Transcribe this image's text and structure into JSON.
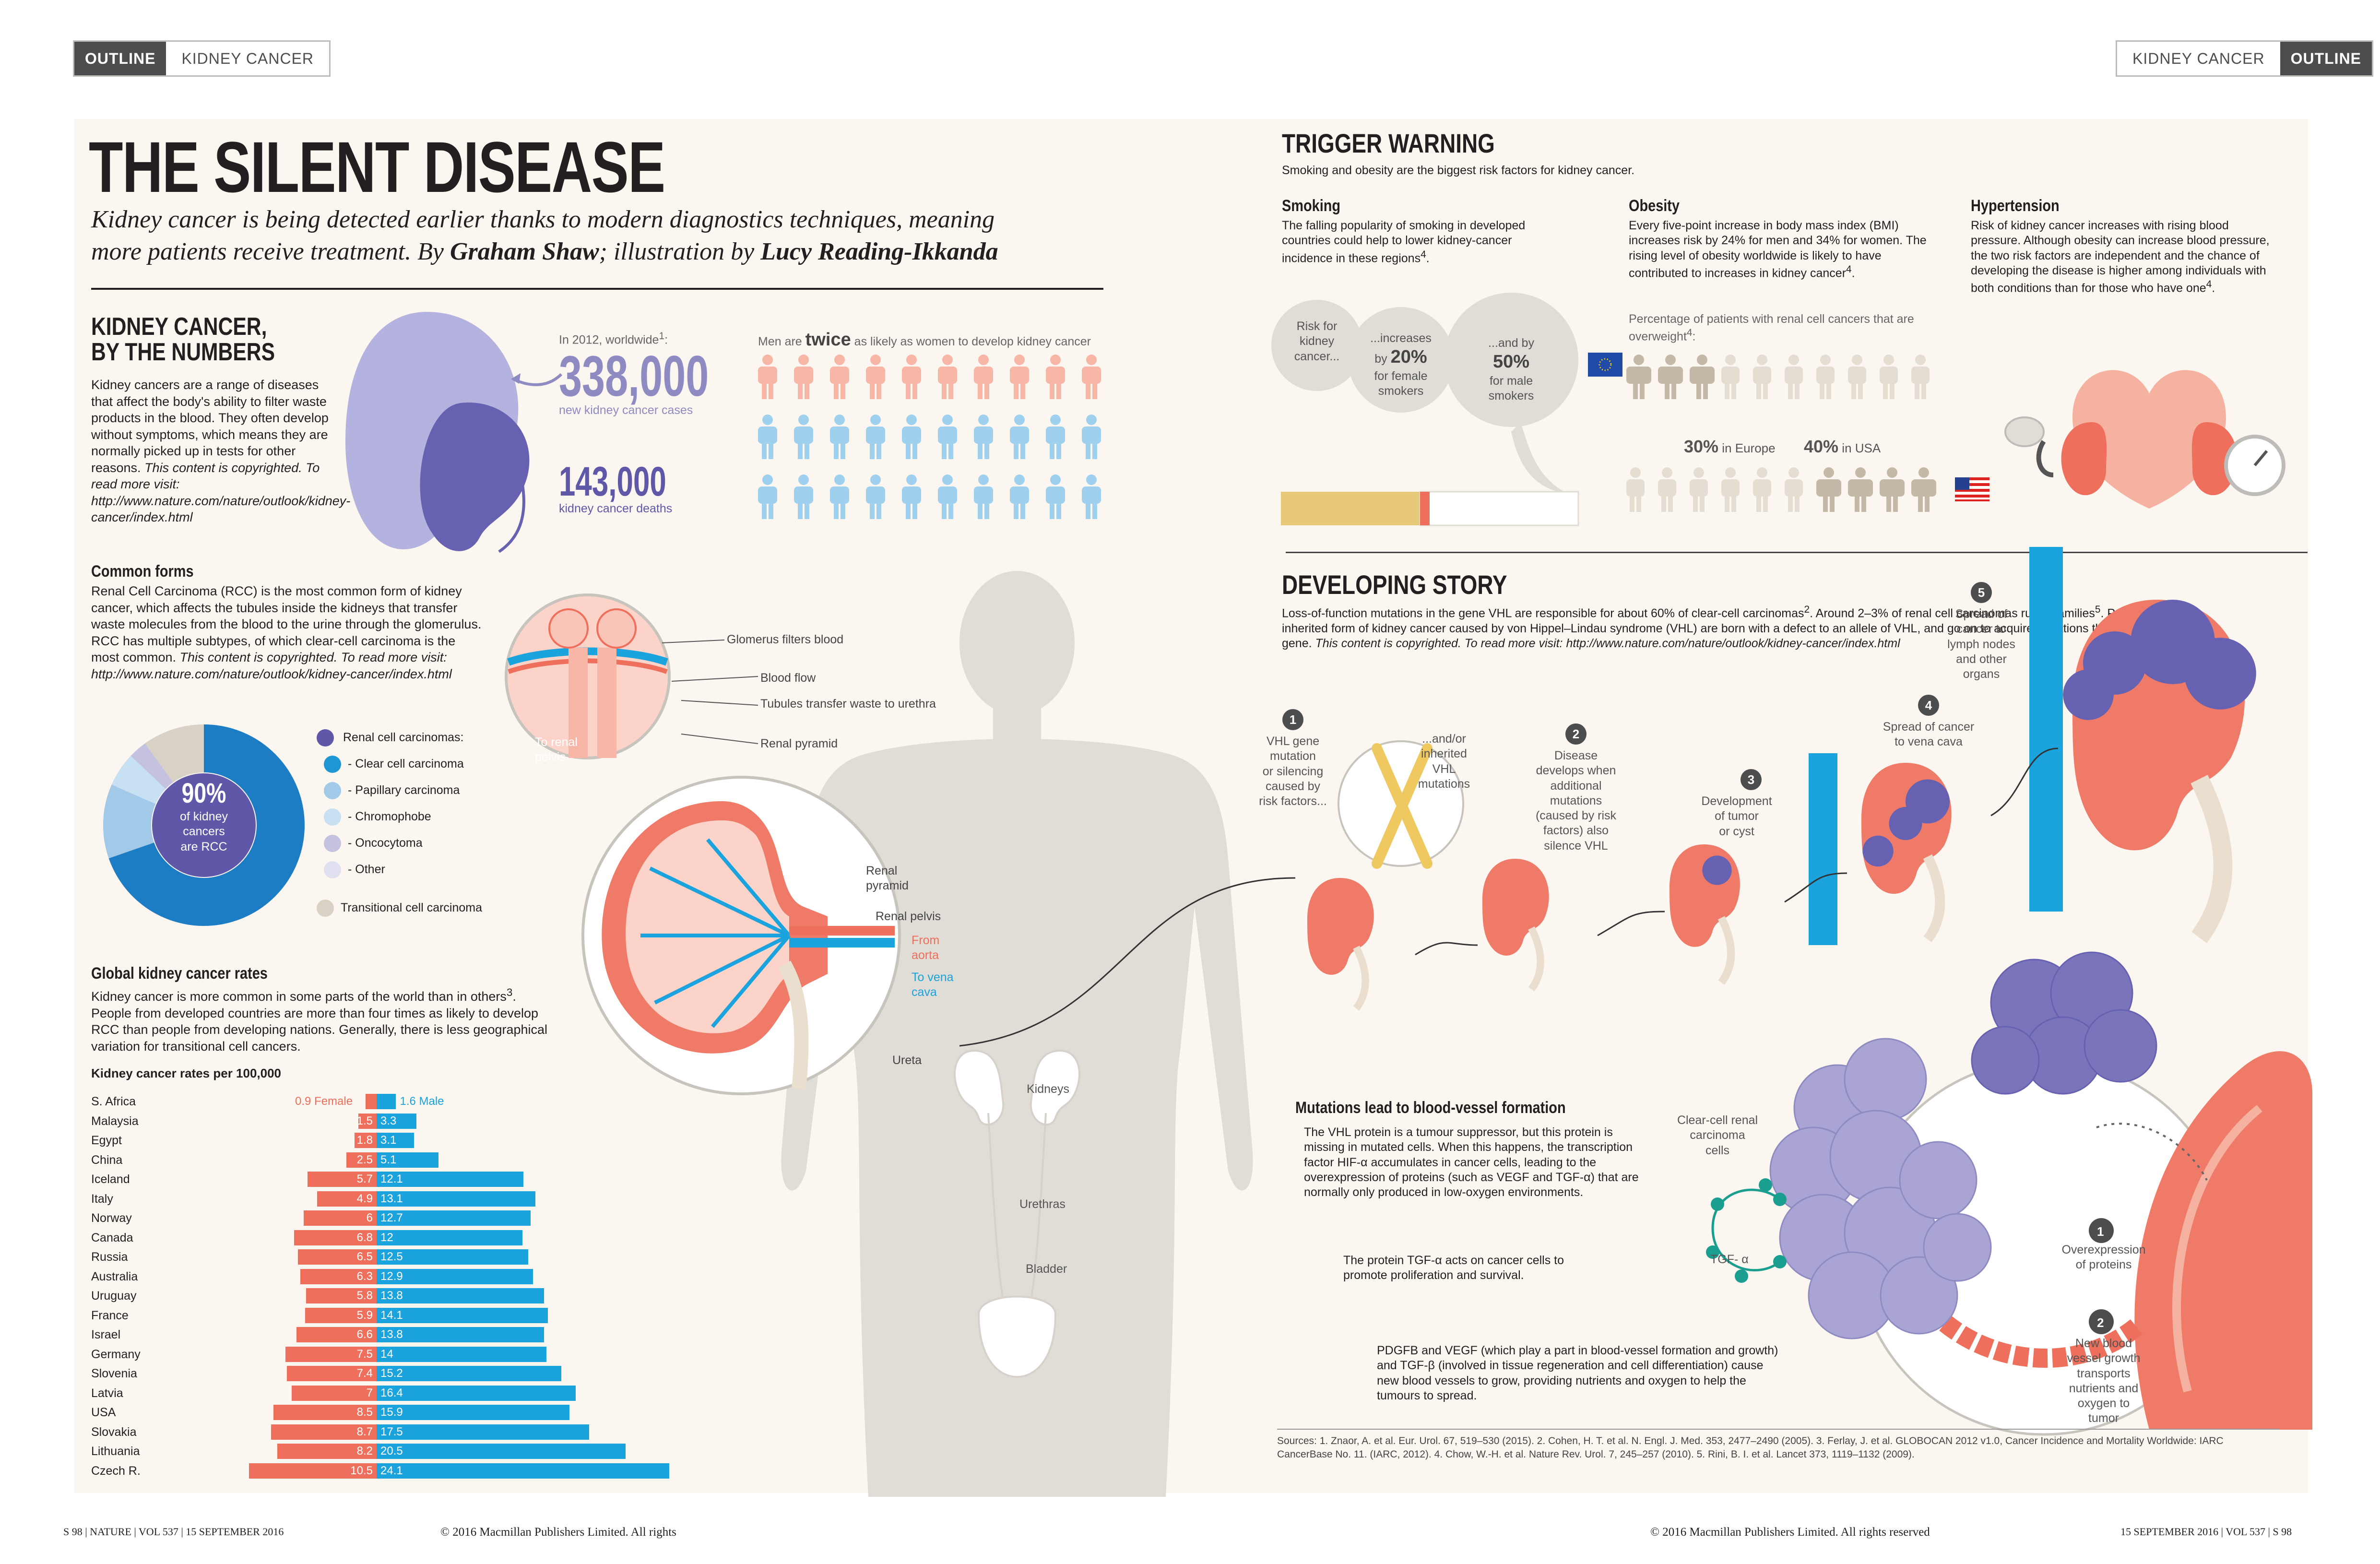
{
  "tags": {
    "left_dark": "OUTLINE",
    "left_light": "KIDNEY CANCER",
    "right_light": "KIDNEY CANCER",
    "right_dark": "OUTLINE"
  },
  "title": "THE SILENT DISEASE",
  "lead": {
    "p1": "Kidney cancer is being detected earlier thanks to modern diagnostics techniques, meaning",
    "p2": "more patients receive treatment. By ",
    "author": "Graham Shaw",
    "p3": "; illustration by ",
    "illustrator": "Lucy Reading-Ikkanda"
  },
  "numbers": {
    "heading1": "KIDNEY CANCER,",
    "heading2": "BY THE NUMBERS",
    "text": "Kidney cancers are a range of diseases that affect the body's ability to filter waste products in the blood. They often develop without symptoms, which means they are normally picked up in tests for other reasons. ",
    "text_ital": "This content is copyrighted. To read more visit: http://www.nature.com/nature/outlook/kidney-cancer/index.html",
    "worldwide": "In 2012, worldwide",
    "worldwide_sup": "1",
    "new_cases_value": "338,000",
    "new_cases_label": "new kidney cancer cases",
    "deaths_value": "143,000",
    "deaths_label": "kidney cancer deaths",
    "men_pre": "Men are ",
    "men_twice": "twice",
    "men_post": " as likely as women to develop kidney cancer"
  },
  "common_forms": {
    "heading": "Common forms",
    "text": "Renal Cell Carcinoma (RCC) is the most common form of kidney cancer, which affects the tubules inside the kidneys that transfer waste molecules from the blood to the urine through the glomerulus. RCC has multiple subtypes, of which clear-cell carcinoma is the most common. ",
    "text_ital": "This content is copyrighted. To read more visit: http://www.nature.com/nature/outlook/kidney-cancer/index.html",
    "donut_value": "90%",
    "donut_label1": "of kidney",
    "donut_label2": "cancers",
    "donut_label3": "are RCC",
    "legend": [
      "Renal cell carcinomas:",
      "- Clear cell carcinoma",
      "- Papillary carcinoma",
      "- Chromophobe",
      "- Oncocytoma",
      "- Other"
    ],
    "transitional": "Transitional cell carcinoma",
    "legend_colors": [
      "#5f58a8",
      "#1d96d3",
      "#a3c9e8",
      "#c7e0f2",
      "#c5c2e0",
      "#e1e0f0"
    ]
  },
  "global_rates": {
    "heading": "Global kidney cancer rates",
    "text": "Kidney cancer is more common in some parts of the world than in others",
    "text_sup": "3",
    "text2": ". People from developed countries are more than four times as likely to develop RCC than people from developing nations. Generally, there is less geographical variation for transitional cell cancers.",
    "chart_title": "Kidney cancer rates per 100,000"
  },
  "chart_data": {
    "type": "bar",
    "title": "Kidney cancer rates per 100,000",
    "categories": [
      "S. Africa",
      "Malaysia",
      "Egypt",
      "China",
      "Iceland",
      "Italy",
      "Norway",
      "Canada",
      "Russia",
      "Australia",
      "Uruguay",
      "France",
      "Israel",
      "Germany",
      "Slovenia",
      "Latvia",
      "USA",
      "Slovakia",
      "Lithuania",
      "Czech R."
    ],
    "series": [
      {
        "name": "Female",
        "color": "#ee6f5b",
        "values": [
          0.9,
          1.5,
          1.8,
          2.5,
          5.7,
          4.9,
          6,
          6.8,
          6.5,
          6.3,
          5.8,
          5.9,
          6.6,
          7.5,
          7.4,
          7,
          8.5,
          8.7,
          8.2,
          10.5
        ]
      },
      {
        "name": "Male",
        "color": "#1aa3dc",
        "values": [
          1.6,
          3.3,
          3.1,
          5.1,
          12.1,
          13.1,
          12.7,
          12,
          12.5,
          12.9,
          13.8,
          14.1,
          13.8,
          14,
          15.2,
          16.4,
          15.9,
          17.5,
          20.5,
          24.1
        ]
      }
    ],
    "labels": [
      "0.9 Female",
      "1.6 Male"
    ]
  },
  "anatomy": {
    "glomerus": "Glomerus filters blood",
    "blood_flow": "Blood flow",
    "tubules": "Tubules transfer waste to urethra",
    "renal_pyramid": "Renal pyramid",
    "to_renal": "To renal",
    "pelvis": "pelvis",
    "renal_pyramid2a": "Renal",
    "renal_pyramid2b": "pyramid",
    "renal_pelvis": "Renal pelvis",
    "from_aorta1": "From",
    "from_aorta2": "aorta",
    "to_vena1": "To vena",
    "to_vena2": "cava",
    "ureta": "Ureta",
    "kidneys": "Kidneys",
    "urethras": "Urethras",
    "bladder": "Bladder"
  },
  "trigger": {
    "heading": "TRIGGER WARNING",
    "sub": "Smoking and obesity are the biggest risk factors for kidney cancer.",
    "smoking_h": "Smoking",
    "smoking_t": "The falling popularity of smoking in developed countries could help to lower kidney-cancer incidence in these regions",
    "smoking_sup": "4",
    "obesity_h": "Obesity",
    "obesity_t": "Every five-point increase in body mass index (BMI) increases risk by 24% for men and 34% for women. The rising level of obesity worldwide is likely to have contributed to increases in kidney cancer",
    "obesity_sup": "4",
    "hyper_h": "Hypertension",
    "hyper_t": "Risk of kidney cancer increases with rising blood pressure. Although obesity can increase blood pressure, the two risk factors are independent and the chance of developing the disease is higher among individuals with both conditions than for those who have one",
    "hyper_sup": "4",
    "b1": [
      "Risk for",
      "kidney",
      "cancer..."
    ],
    "b2a": "...increases",
    "b2b": "by ",
    "b2v": "20%",
    "b2c": "for female",
    "b2d": "smokers",
    "b3a": "...and by",
    "b3v": "50%",
    "b3b": "for male",
    "b3c": "smokers",
    "pct_text": "Percentage of patients with renal cell cancers that are overweight",
    "pct_sup": "4",
    "europe_v": "30%",
    "europe_l": " in Europe",
    "usa_v": "40%",
    "usa_l": " in USA"
  },
  "developing": {
    "heading": "DEVELOPING STORY",
    "text": "Loss-of-function mutations in the gene VHL are responsible for about 60% of clear-cell carcinomas",
    "sup1": "2",
    "text2": ". Around 2–3% of renal cell carcinomas run in families",
    "sup2": "5",
    "text3": ". People with an inherited form of kidney cancer caused by von Hippel–Lindau syndrome (VHL) are born with a defect to an allele of VHL, and go on to acquire mutations that silence the gene. ",
    "text_ital": "This content is copyrighted. To read more visit: http://www.nature.com/nature/outlook/kidney-cancer/index.html",
    "s1": [
      "VHL gene",
      "mutation",
      "or silencing",
      "caused by",
      "risk factors..."
    ],
    "s1b": [
      "...and/or",
      "inherited",
      "VHL",
      "mutations"
    ],
    "s2": [
      "Disease",
      "develops when",
      "additional",
      "mutations",
      "(caused by risk",
      "factors) also",
      "silence VHL"
    ],
    "s3": [
      "Development",
      "of tumor",
      "or cyst"
    ],
    "s4": [
      "Spread of cancer",
      "to vena cava"
    ],
    "s5": [
      "Spread of",
      "cancer to",
      "lymph nodes",
      "and other",
      "organs"
    ],
    "nums": [
      "1",
      "2",
      "3",
      "4",
      "5"
    ]
  },
  "mutations": {
    "heading": "Mutations lead to blood-vessel formation",
    "text": "The VHL protein is a tumour suppressor, but this protein is missing in mutated cells. When this happens, the transcription factor HIF-α accumulates in cancer cells, leading to the overexpression of proteins (such as VEGF and TGF-α) that are normally only produced in low-oxygen environments.",
    "tgf_text": "The protein TGF-α acts on cancer cells to promote proliferation and survival.",
    "tgf_label": "TGF- α",
    "clear_cell": [
      "Clear-cell renal",
      "carcinoma",
      "cells"
    ],
    "over": [
      "Overexpression",
      "of proteins"
    ],
    "newv": [
      "New blood",
      "vessel growth",
      "transports",
      "nutrients and",
      "oxygen to",
      "tumor"
    ],
    "pdgfb": "PDGFB and VEGF (which play a part in blood-vessel formation and growth) and TGF-β (involved in tissue regeneration and cell differentiation) cause new blood vessels to grow, providing nutrients and oxygen to help the tumours to spread.",
    "n1": "1",
    "n2": "2"
  },
  "sources": "Sources: 1. Znaor, A. et al. Eur. Urol. 67, 519–530 (2015). 2. Cohen, H. T. et al. N. Engl. J. Med. 353, 2477–2490 (2005). 3. Ferlay, J. et al. GLOBOCAN 2012 v1.0, Cancer Incidence and Mortality Worldwide: IARC CancerBase No. 11. (IARC, 2012). 4. Chow, W.-H. et al. Nature Rev. Urol. 7, 245–257 (2010). 5. Rini, B. I. et al. Lancet 373, 1119–1132 (2009).",
  "footer": {
    "left": "S 98  |  NATURE  |  VOL 537  |  15 SEPTEMBER 2016",
    "copy_left": "© 2016 Macmillan Publishers Limited. All rights",
    "copy_right": "© 2016 Macmillan Publishers Limited. All rights reserved",
    "right": "15 SEPTEMBER 2016  |  VOL 537  |  S 98"
  }
}
